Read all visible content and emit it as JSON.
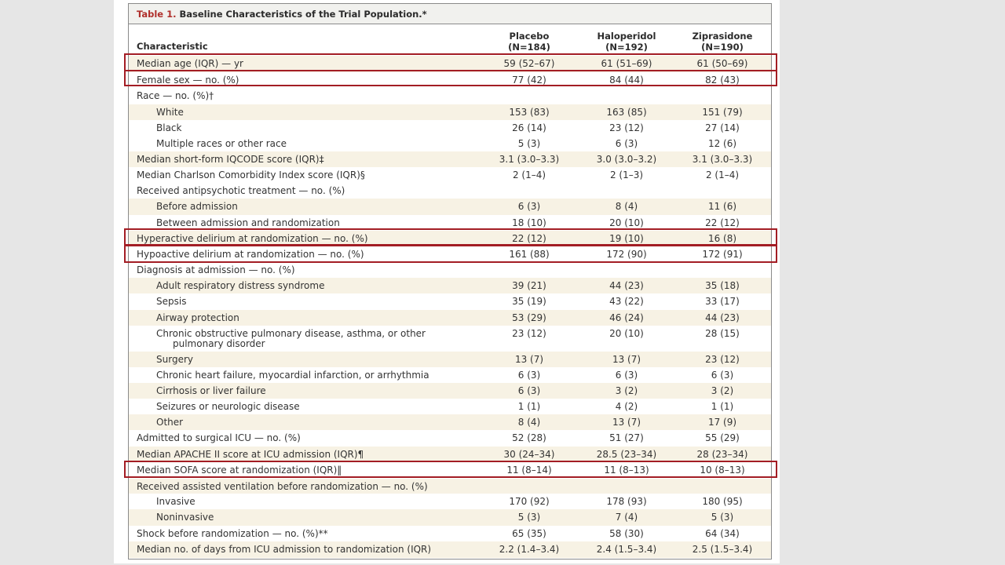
{
  "table": {
    "label": "Table 1.",
    "title": "Baseline Characteristics of the Trial Population.*",
    "headers": {
      "characteristic": "Characteristic",
      "col1": "Placebo",
      "col1_n": "(N=184)",
      "col2": "Haloperidol",
      "col2_n": "(N=192)",
      "col3": "Ziprasidone",
      "col3_n": "(N=190)"
    },
    "rows": [
      {
        "label": "Median age (IQR) — yr",
        "v1": "59 (52–67)",
        "v2": "61 (51–69)",
        "v3": "61 (50–69)"
      },
      {
        "label": "Female sex — no. (%)",
        "v1": "77 (42)",
        "v2": "84 (44)",
        "v3": "82 (43)"
      },
      {
        "label": "Race — no. (%)†",
        "v1": "",
        "v2": "",
        "v3": ""
      },
      {
        "label": "White",
        "v1": "153 (83)",
        "v2": "163 (85)",
        "v3": "151 (79)"
      },
      {
        "label": "Black",
        "v1": "26 (14)",
        "v2": "23 (12)",
        "v3": "27 (14)"
      },
      {
        "label": "Multiple races or other race",
        "v1": "5 (3)",
        "v2": "6 (3)",
        "v3": "12 (6)"
      },
      {
        "label": "Median short-form IQCODE score (IQR)‡",
        "v1": "3.1 (3.0–3.3)",
        "v2": "3.0 (3.0–3.2)",
        "v3": "3.1 (3.0–3.3)"
      },
      {
        "label": "Median Charlson Comorbidity Index score (IQR)§",
        "v1": "2 (1–4)",
        "v2": "2 (1–3)",
        "v3": "2 (1–4)"
      },
      {
        "label": "Received antipsychotic treatment — no. (%)",
        "v1": "",
        "v2": "",
        "v3": ""
      },
      {
        "label": "Before admission",
        "v1": "6 (3)",
        "v2": "8 (4)",
        "v3": "11 (6)"
      },
      {
        "label": "Between admission and randomization",
        "v1": "18 (10)",
        "v2": "20 (10)",
        "v3": "22 (12)"
      },
      {
        "label": "Hyperactive delirium at randomization — no. (%)",
        "v1": "22 (12)",
        "v2": "19 (10)",
        "v3": "16 (8)"
      },
      {
        "label": "Hypoactive delirium at randomization — no. (%)",
        "v1": "161 (88)",
        "v2": "172 (90)",
        "v3": "172 (91)"
      },
      {
        "label": "Diagnosis at admission — no. (%)",
        "v1": "",
        "v2": "",
        "v3": ""
      },
      {
        "label": "Adult respiratory distress syndrome",
        "v1": "39 (21)",
        "v2": "44 (23)",
        "v3": "35 (18)"
      },
      {
        "label": "Sepsis",
        "v1": "35 (19)",
        "v2": "43 (22)",
        "v3": "33 (17)"
      },
      {
        "label": "Airway protection",
        "v1": "53 (29)",
        "v2": "46 (24)",
        "v3": "44 (23)"
      },
      {
        "label": "Chronic obstructive pulmonary disease, asthma, or other",
        "label2": "pulmonary disorder",
        "v1": "23 (12)",
        "v2": "20 (10)",
        "v3": "28 (15)"
      },
      {
        "label": "Surgery",
        "v1": "13 (7)",
        "v2": "13 (7)",
        "v3": "23 (12)"
      },
      {
        "label": "Chronic heart failure, myocardial infarction, or arrhythmia",
        "v1": "6 (3)",
        "v2": "6 (3)",
        "v3": "6 (3)"
      },
      {
        "label": "Cirrhosis or liver failure",
        "v1": "6 (3)",
        "v2": "3 (2)",
        "v3": "3 (2)"
      },
      {
        "label": "Seizures or neurologic disease",
        "v1": "1 (1)",
        "v2": "4 (2)",
        "v3": "1 (1)"
      },
      {
        "label": "Other",
        "v1": "8 (4)",
        "v2": "13 (7)",
        "v3": "17 (9)"
      },
      {
        "label": "Admitted to surgical ICU — no. (%)",
        "v1": "52 (28)",
        "v2": "51 (27)",
        "v3": "55 (29)"
      },
      {
        "label": "Median APACHE II score at ICU admission (IQR)¶",
        "v1": "30 (24–34)",
        "v2": "28.5 (23–34)",
        "v3": "28 (23–34)"
      },
      {
        "label": "Median SOFA score at randomization (IQR)‖",
        "v1": "11 (8–14)",
        "v2": "11 (8–13)",
        "v3": "10 (8–13)"
      },
      {
        "label": "Received assisted ventilation before randomization — no. (%)",
        "v1": "",
        "v2": "",
        "v3": ""
      },
      {
        "label": "Invasive",
        "v1": "170 (92)",
        "v2": "178 (93)",
        "v3": "180 (95)"
      },
      {
        "label": "Noninvasive",
        "v1": "5 (3)",
        "v2": "7 (4)",
        "v3": "5 (3)"
      },
      {
        "label": "Shock before randomization — no. (%)**",
        "v1": "65 (35)",
        "v2": "58 (30)",
        "v3": "64 (34)"
      },
      {
        "label": "Median no. of days from ICU admission to randomization (IQR)",
        "v1": "2.2 (1.4–3.4)",
        "v2": "2.4 (1.5–3.4)",
        "v3": "2.5 (1.5–3.4)"
      }
    ]
  }
}
